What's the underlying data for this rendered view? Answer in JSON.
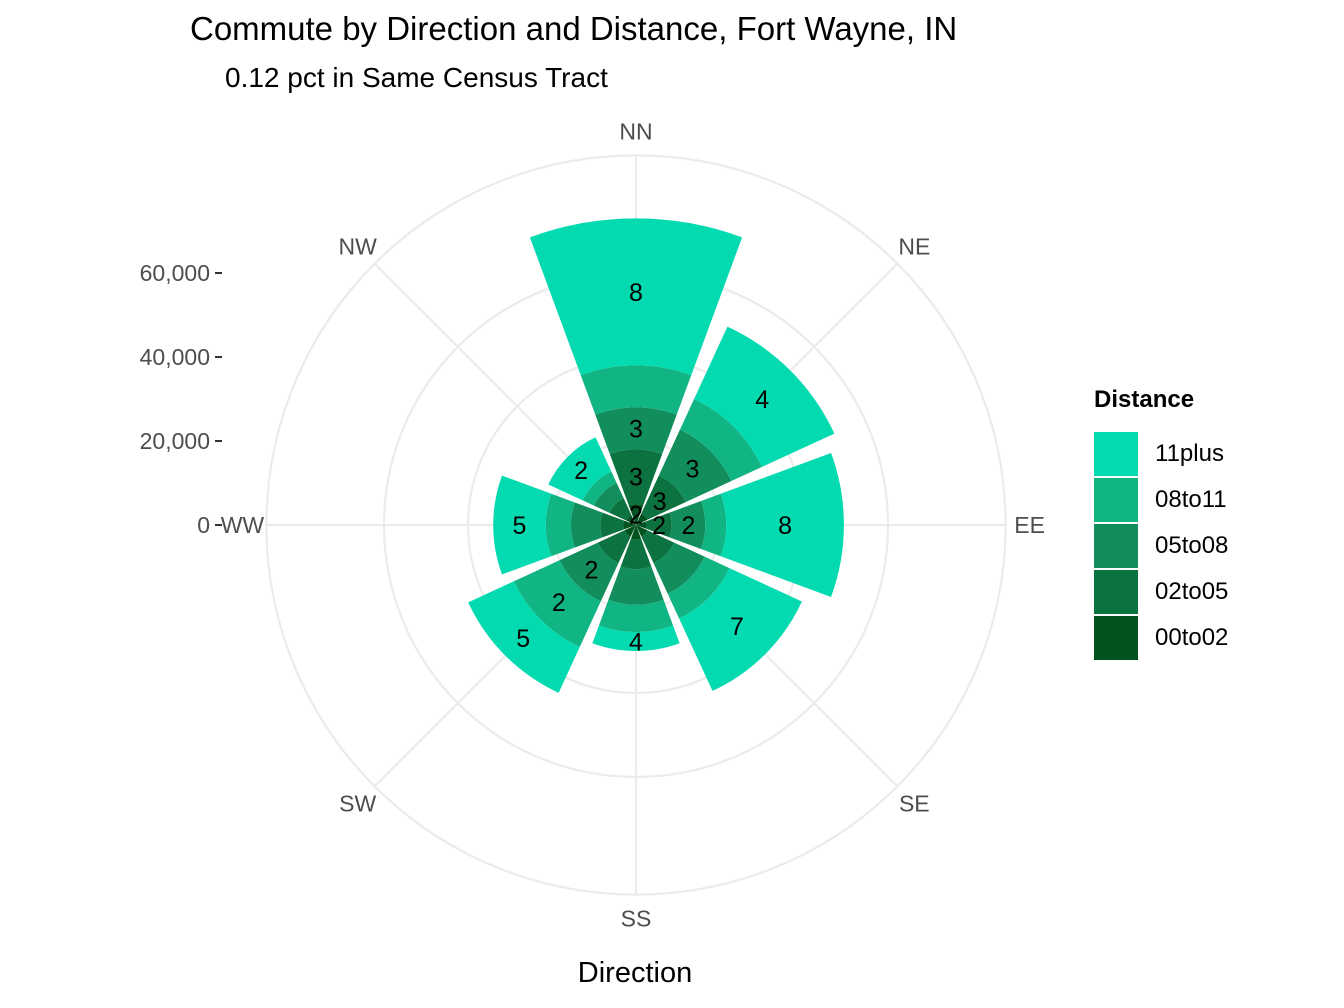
{
  "chart_data": {
    "type": "polar-stacked-bar",
    "title": "Commute by Direction and Distance, Fort Wayne, IN",
    "subtitle": "0.12 pct in Same Census Tract",
    "xlabel": "Direction",
    "ylabel": "",
    "yticks": [
      "0",
      "20,000",
      "40,000",
      "60,000"
    ],
    "ytick_values": [
      0,
      20000,
      40000,
      60000
    ],
    "ylim": [
      0,
      88000
    ],
    "categories": [
      "NN",
      "NE",
      "EE",
      "SE",
      "SS",
      "SW",
      "WW",
      "NW"
    ],
    "legend_title": "Distance",
    "legend_position": "right",
    "series": [
      {
        "name": "00to02",
        "color": "#00521F",
        "values": [
          5000,
          3000,
          2500,
          3000,
          3500,
          3000,
          3000,
          2500
        ]
      },
      {
        "name": "02to05",
        "color": "#0C723F",
        "values": [
          13000,
          10000,
          6000,
          7000,
          7000,
          7000,
          5500,
          4500
        ]
      },
      {
        "name": "05to08",
        "color": "#128E5C",
        "values": [
          10000,
          12000,
          8000,
          8000,
          8500,
          10000,
          7000,
          4000
        ]
      },
      {
        "name": "08to11",
        "color": "#11B584",
        "values": [
          10000,
          8000,
          5000,
          6500,
          6500,
          12000,
          6000,
          3000
        ]
      },
      {
        "name": "11plus",
        "color": "#04DAB0",
        "values": [
          35000,
          19000,
          28000,
          19000,
          4500,
          12000,
          12500,
          9000
        ]
      }
    ],
    "bar_labels": [
      {
        "direction": "NN",
        "series": "00to02",
        "text": "2"
      },
      {
        "direction": "NN",
        "series": "02to05",
        "text": "3"
      },
      {
        "direction": "NN",
        "series": "05to08",
        "text": "3"
      },
      {
        "direction": "NN",
        "series": "11plus",
        "text": "8"
      },
      {
        "direction": "NE",
        "series": "02to05",
        "text": "3"
      },
      {
        "direction": "NE",
        "series": "05to08",
        "text": "3"
      },
      {
        "direction": "NE",
        "series": "11plus",
        "text": "4"
      },
      {
        "direction": "EE",
        "series": "02to05",
        "text": "2"
      },
      {
        "direction": "EE",
        "series": "05to08",
        "text": "2"
      },
      {
        "direction": "EE",
        "series": "11plus",
        "text": "8"
      },
      {
        "direction": "SE",
        "series": "11plus",
        "text": "7"
      },
      {
        "direction": "SS",
        "series": "11plus",
        "text": "4"
      },
      {
        "direction": "SW",
        "series": "05to08",
        "text": "2"
      },
      {
        "direction": "SW",
        "series": "08to11",
        "text": "2"
      },
      {
        "direction": "SW",
        "series": "11plus",
        "text": "5"
      },
      {
        "direction": "WW",
        "series": "11plus",
        "text": "5"
      },
      {
        "direction": "NW",
        "series": "11plus",
        "text": "2"
      }
    ],
    "grid": true
  }
}
